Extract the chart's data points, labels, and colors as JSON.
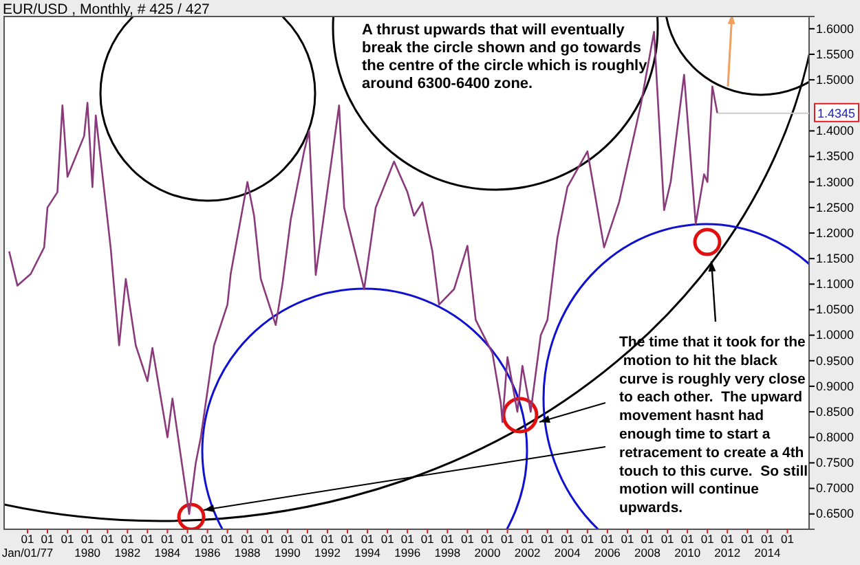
{
  "chart_data": {
    "type": "line",
    "title": "EUR/USD , Monthly, # 425 / 427",
    "x": [
      "1976-02",
      "1976-07",
      "1977-03",
      "1977-11",
      "1978-01",
      "1978-07",
      "1978-10",
      "1979-01",
      "1979-11",
      "1980-01",
      "1980-04",
      "1980-06",
      "1981-03",
      "1981-08",
      "1981-12",
      "1982-06",
      "1983-01",
      "1983-04",
      "1984-01",
      "1984-04",
      "1985-02",
      "1985-06",
      "1985-09",
      "1986-05",
      "1987-01",
      "1987-03",
      "1988-01",
      "1988-05",
      "1988-09",
      "1989-06",
      "1989-10",
      "1990-03",
      "1990-11",
      "1991-02",
      "1991-06",
      "1992-08",
      "1992-11",
      "1993-07",
      "1993-11",
      "1994-06",
      "1995-05",
      "1996-01",
      "1996-05",
      "1996-10",
      "1997-04",
      "1997-08",
      "1998-05",
      "1999-01",
      "1999-06",
      "2000-04",
      "2000-09",
      "2000-10",
      "2001-01",
      "2001-07",
      "2001-10",
      "2002-03",
      "2002-09",
      "2003-01",
      "2003-07",
      "2004-01",
      "2005-01",
      "2005-11",
      "2006-08",
      "2007-09",
      "2008-05",
      "2008-11",
      "2009-03",
      "2009-11",
      "2010-06",
      "2010-11",
      "2011-01",
      "2011-04",
      "2011-07"
    ],
    "series": [
      {
        "color": "#8a3a7a",
        "values": [
          1.164,
          1.097,
          1.12,
          1.172,
          1.25,
          1.28,
          1.45,
          1.31,
          1.39,
          1.455,
          1.29,
          1.43,
          1.17,
          0.98,
          1.11,
          0.98,
          0.91,
          0.975,
          0.8,
          0.876,
          0.65,
          0.75,
          0.8,
          0.98,
          1.06,
          1.12,
          1.3,
          1.234,
          1.11,
          1.02,
          1.1,
          1.226,
          1.36,
          1.4,
          1.118,
          1.45,
          1.25,
          1.145,
          1.09,
          1.25,
          1.34,
          1.28,
          1.234,
          1.26,
          1.164,
          1.06,
          1.09,
          1.175,
          1.03,
          0.965,
          0.868,
          0.83,
          0.957,
          0.85,
          0.94,
          0.85,
          1.0,
          1.03,
          1.19,
          1.29,
          1.36,
          1.172,
          1.26,
          1.45,
          1.594,
          1.245,
          1.3,
          1.51,
          1.218,
          1.315,
          1.3,
          1.487,
          1.435
        ]
      }
    ],
    "xlim": [
      "1975-11",
      "2016-02"
    ],
    "xticks": [
      {
        "value": "1977",
        "label": "01\nJan/01/77"
      },
      {
        "value": "1978",
        "label": "01"
      },
      {
        "value": "1979",
        "label": "01"
      },
      {
        "value": "1980",
        "label": "01\n1980"
      },
      {
        "value": "1981",
        "label": "01"
      },
      {
        "value": "1982",
        "label": "01\n1982"
      },
      {
        "value": "1983",
        "label": "01"
      },
      {
        "value": "1984",
        "label": "01\n1984"
      },
      {
        "value": "1985",
        "label": "01"
      },
      {
        "value": "1986",
        "label": "01\n1986"
      },
      {
        "value": "1987",
        "label": "01"
      },
      {
        "value": "1988",
        "label": "01\n1988"
      },
      {
        "value": "1989",
        "label": "01"
      },
      {
        "value": "1990",
        "label": "01\n1990"
      },
      {
        "value": "1991",
        "label": "01"
      },
      {
        "value": "1992",
        "label": "01\n1992"
      },
      {
        "value": "1993",
        "label": "01"
      },
      {
        "value": "1994",
        "label": "01\n1994"
      },
      {
        "value": "1995",
        "label": "01"
      },
      {
        "value": "1996",
        "label": "01\n1996"
      },
      {
        "value": "1997",
        "label": "01"
      },
      {
        "value": "1998",
        "label": "01\n1998"
      },
      {
        "value": "1999",
        "label": "01"
      },
      {
        "value": "2000",
        "label": "01\n2000"
      },
      {
        "value": "2001",
        "label": "01"
      },
      {
        "value": "2002",
        "label": "01\n2002"
      },
      {
        "value": "2003",
        "label": "01"
      },
      {
        "value": "2004",
        "label": "01\n2004"
      },
      {
        "value": "2005",
        "label": "01"
      },
      {
        "value": "2006",
        "label": "01\n2006"
      },
      {
        "value": "2007",
        "label": "01"
      },
      {
        "value": "2008",
        "label": "01\n2008"
      },
      {
        "value": "2009",
        "label": "01"
      },
      {
        "value": "2010",
        "label": "01\n2010"
      },
      {
        "value": "2011",
        "label": "01"
      },
      {
        "value": "2012",
        "label": "01\n2012"
      },
      {
        "value": "2013",
        "label": "01"
      },
      {
        "value": "2014",
        "label": "01\n2014"
      },
      {
        "value": "2015",
        "label": "01"
      }
    ],
    "ylim": [
      0.62,
      1.624
    ],
    "yticks": [
      {
        "value": 0.65,
        "label": "0.6500"
      },
      {
        "value": 0.7,
        "label": "0.7000"
      },
      {
        "value": 0.75,
        "label": "0.7500"
      },
      {
        "value": 0.8,
        "label": "0.8000"
      },
      {
        "value": 0.85,
        "label": "0.8500"
      },
      {
        "value": 0.9,
        "label": "0.9000"
      },
      {
        "value": 0.95,
        "label": "0.9500"
      },
      {
        "value": 1.0,
        "label": "1.0000"
      },
      {
        "value": 1.05,
        "label": "1.0500"
      },
      {
        "value": 1.1,
        "label": "1.1000"
      },
      {
        "value": 1.15,
        "label": "1.1500"
      },
      {
        "value": 1.2,
        "label": "1.2000"
      },
      {
        "value": 1.25,
        "label": "1.2500"
      },
      {
        "value": 1.3,
        "label": "1.3000"
      },
      {
        "value": 1.35,
        "label": "1.3500"
      },
      {
        "value": 1.4,
        "label": "1.4000"
      },
      {
        "value": 1.5,
        "label": "1.5000"
      },
      {
        "value": 1.55,
        "label": "1.5500"
      },
      {
        "value": 1.6,
        "label": "1.6000"
      }
    ],
    "annotations": [
      "A thrust upwards that will eventually\nbreak the circle shown and go towards\nthe centre of the circle which is roughly\naround 6300-6400 zone.",
      "The time that it took for the\n motion to hit the black\ncurve is roughly very close\nto each other.  The upward\nmovement hasnt had\nenough time to start a\nretracement to create a 4th\ntouch to this curve.  So still\nmotion will continue\nupwards.",
      {
        "text": "1.4345",
        "x": "2011-07",
        "y": 1.4345
      }
    ]
  }
}
